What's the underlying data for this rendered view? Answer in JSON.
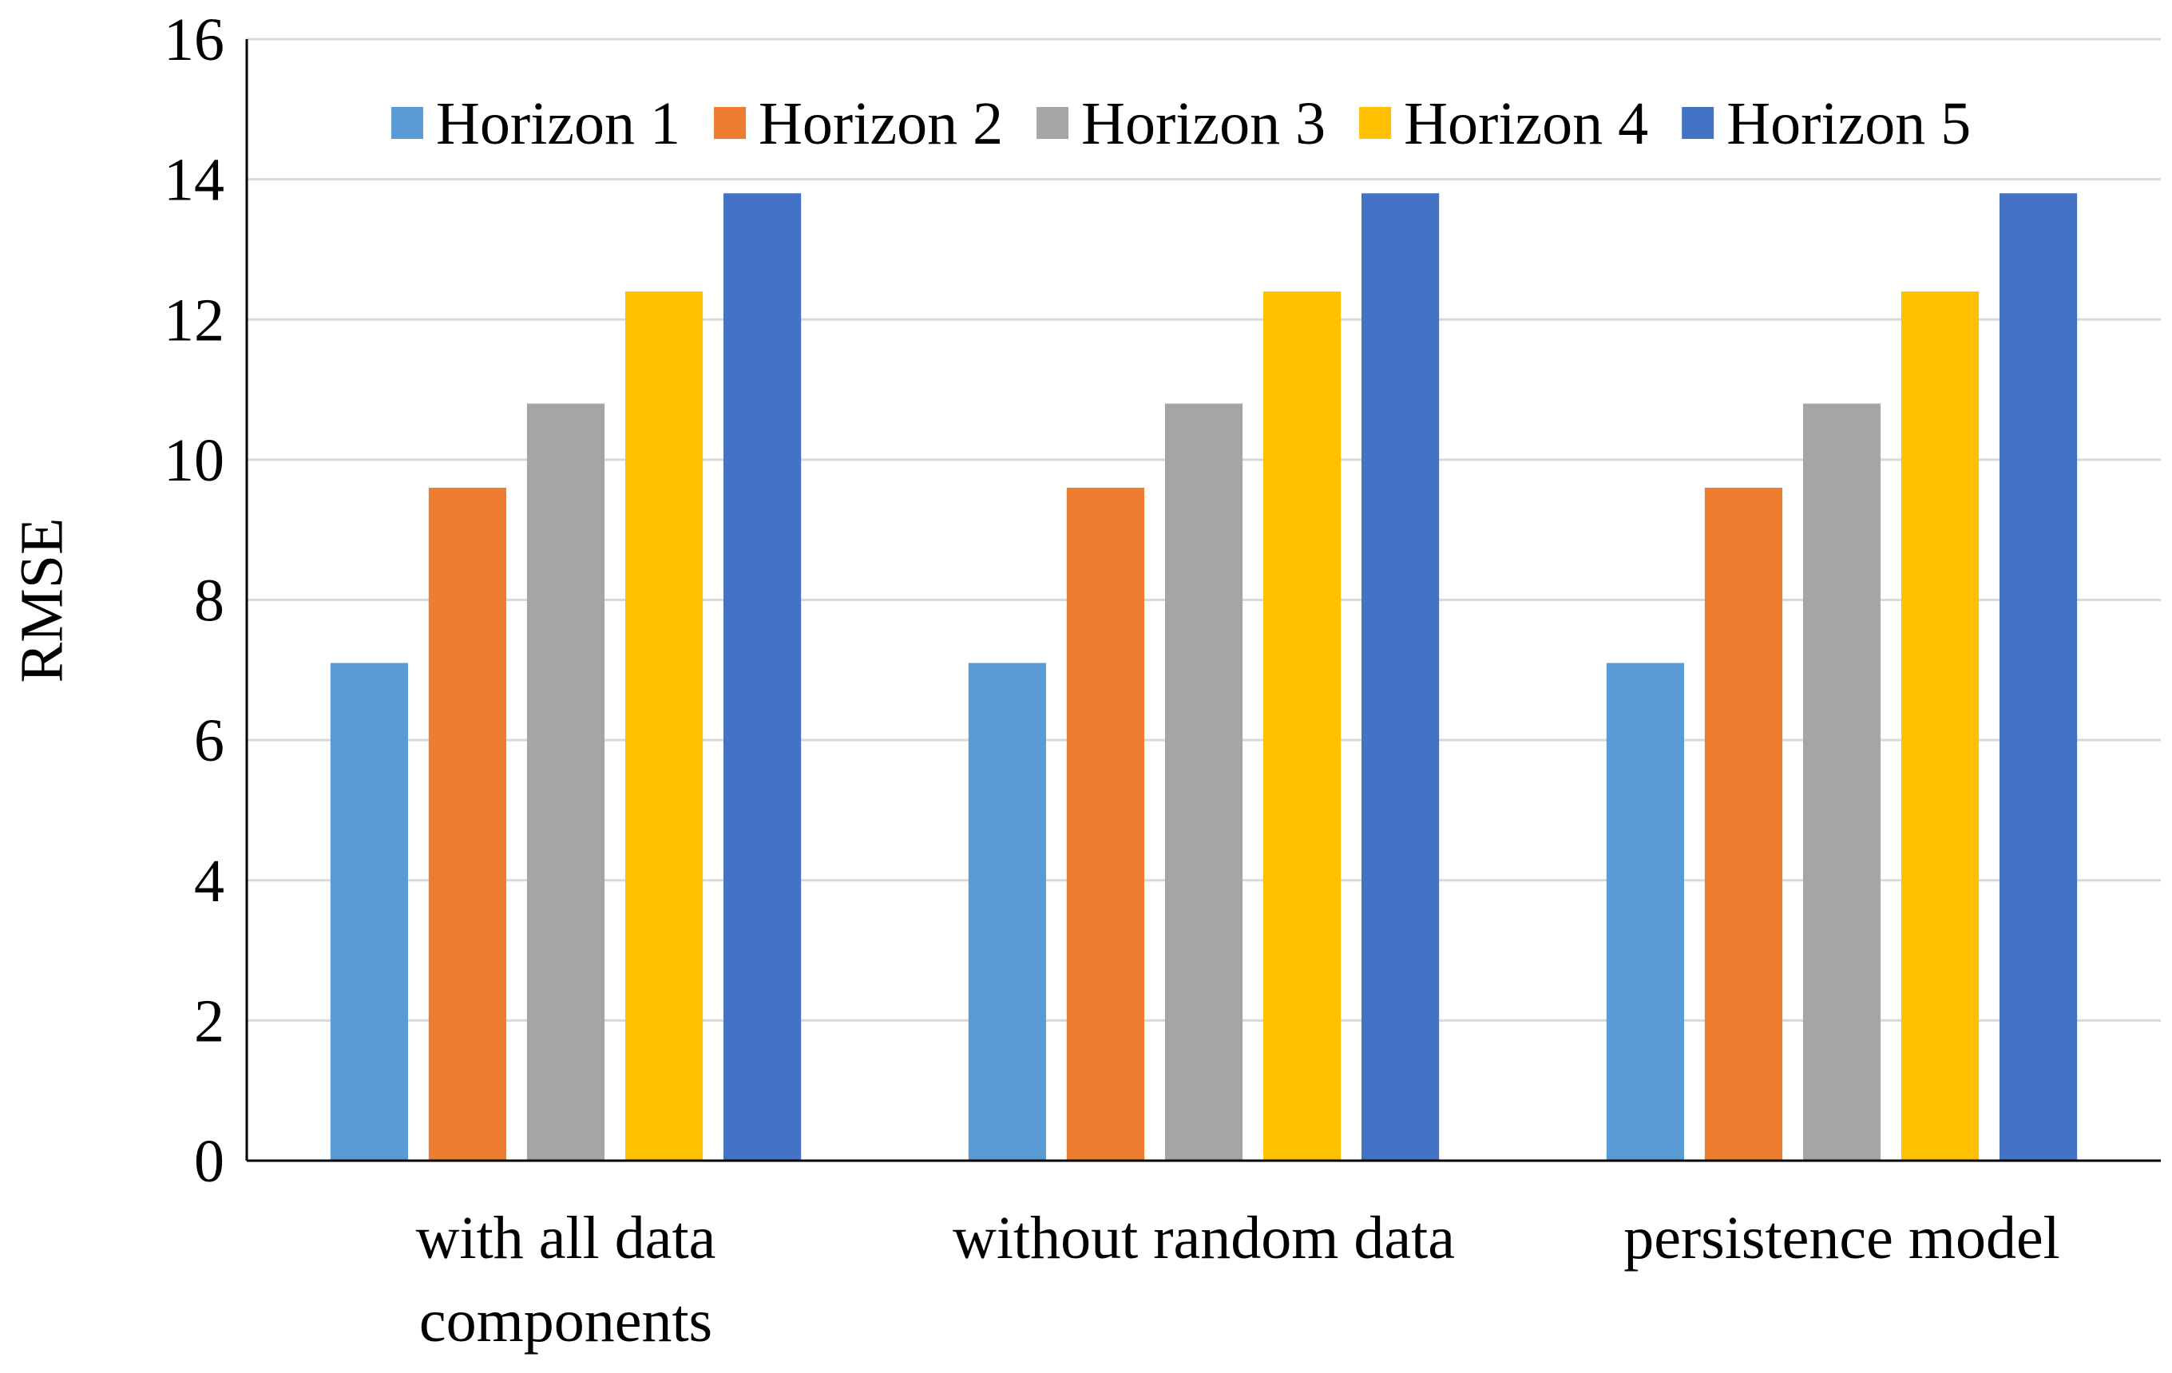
{
  "chart_data": {
    "type": "bar",
    "y_label": "RMSE",
    "categories": [
      "with all data components",
      "without random data",
      "persistence model"
    ],
    "series": [
      {
        "name": "Horizon 1",
        "color": "#5b9bd5",
        "values": [
          7.1,
          7.1,
          7.1
        ]
      },
      {
        "name": "Horizon 2",
        "color": "#ed7d31",
        "values": [
          9.6,
          9.6,
          9.6
        ]
      },
      {
        "name": "Horizon 3",
        "color": "#a5a5a5",
        "values": [
          10.8,
          10.8,
          10.8
        ]
      },
      {
        "name": "Horizon 4",
        "color": "#ffc000",
        "values": [
          12.4,
          12.4,
          12.4
        ]
      },
      {
        "name": "Horizon 5",
        "color": "#4472c4",
        "values": [
          13.8,
          13.8,
          13.8
        ]
      }
    ],
    "ylim": [
      0,
      16
    ],
    "yticks": [
      0,
      2,
      4,
      6,
      8,
      10,
      12,
      14,
      16
    ],
    "grid": true,
    "legend": "top"
  }
}
